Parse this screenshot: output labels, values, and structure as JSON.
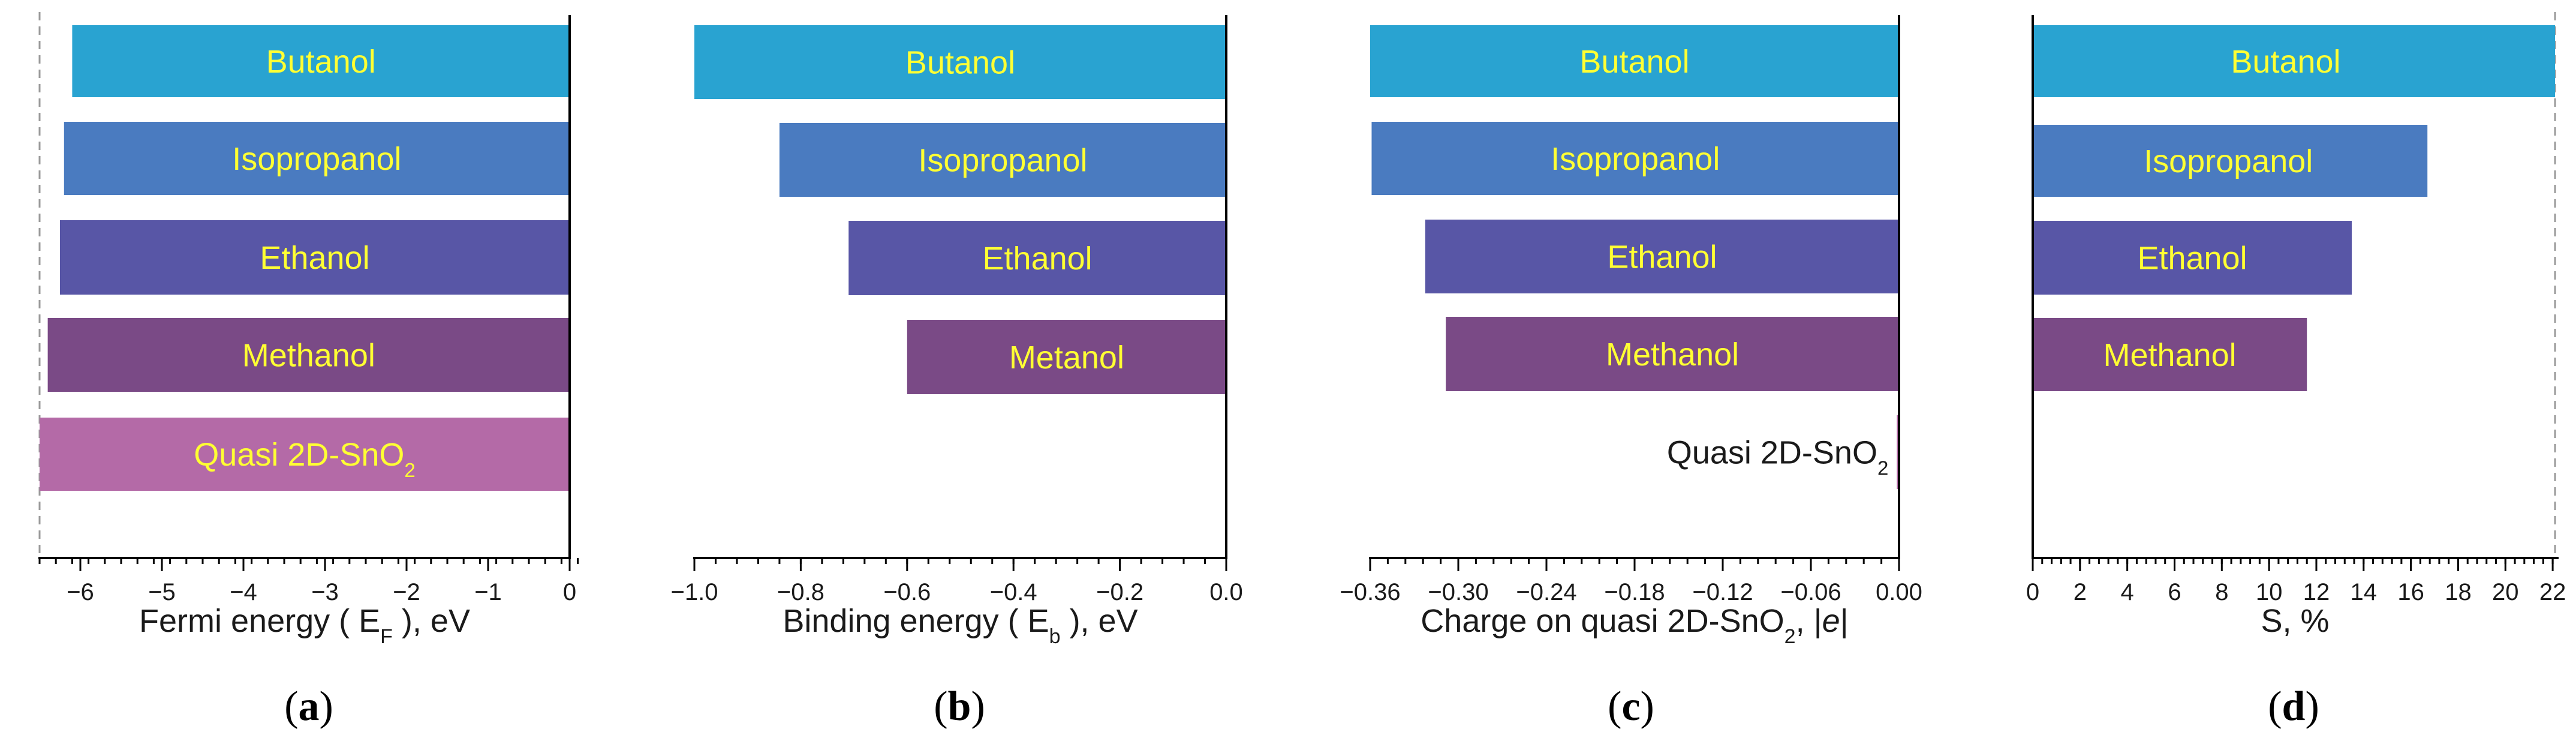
{
  "figure": {
    "panels": [
      "a",
      "b",
      "c",
      "d"
    ]
  },
  "chart_data": [
    {
      "type": "bar",
      "orientation": "horizontal",
      "panel": "a",
      "categories": [
        "Butanol",
        "Isopropanol",
        "Ethanol",
        "Methanol",
        "Quasi 2D-SnO2"
      ],
      "category_label_parts": [
        [
          "Butanol"
        ],
        [
          "Isopropanol"
        ],
        [
          "Ethanol"
        ],
        [
          "Methanol"
        ],
        [
          "Quasi 2D-SnO",
          "2",
          ""
        ]
      ],
      "values": [
        -6.1,
        -6.2,
        -6.25,
        -6.4,
        -6.5
      ],
      "colors": [
        "#29a3d1",
        "#4a7bc0",
        "#5856a6",
        "#7a4a86",
        "#b46aa7"
      ],
      "label_position": "inside-center",
      "xlim": [
        -6.5,
        0
      ],
      "xticks": [
        -6,
        -5,
        -4,
        -3,
        -2,
        -1,
        0
      ],
      "xticklabels": [
        "−6",
        "−5",
        "−4",
        "−3",
        "−2",
        "−1",
        "0"
      ],
      "xminor_step": 0.2,
      "xlabel_parts": [
        "Fermi energy ( E",
        "F",
        " ), eV"
      ],
      "ref_line": -6.5
    },
    {
      "type": "bar",
      "orientation": "horizontal",
      "panel": "b",
      "categories": [
        "Butanol",
        "Isopropanol",
        "Ethanol",
        "Metanol"
      ],
      "category_label_parts": [
        [
          "Butanol"
        ],
        [
          "Isopropanol"
        ],
        [
          "Ethanol"
        ],
        [
          "Metanol"
        ]
      ],
      "values": [
        -1.0,
        -0.84,
        -0.71,
        -0.6
      ],
      "colors": [
        "#29a3d1",
        "#4a7bc0",
        "#5856a6",
        "#7a4a86"
      ],
      "label_position": "inside-left",
      "xlim": [
        -1.0,
        0.0
      ],
      "xticks": [
        -1.0,
        -0.8,
        -0.6,
        -0.4,
        -0.2,
        0.0
      ],
      "xticklabels": [
        "−1.0",
        "−0.8",
        "−0.6",
        "−0.4",
        "−0.2",
        "0.0"
      ],
      "xminor_step": 0.04,
      "xlabel_parts": [
        "Binding energy ( E",
        "b",
        " ), eV"
      ]
    },
    {
      "type": "bar",
      "orientation": "horizontal",
      "panel": "c",
      "categories": [
        "Butanol",
        "Isopropanol",
        "Ethanol",
        "Methanol",
        "Quasi 2D-SnO2"
      ],
      "category_label_parts": [
        [
          "Butanol"
        ],
        [
          "Isopropanol"
        ],
        [
          "Ethanol"
        ],
        [
          "Methanol"
        ],
        [
          "Quasi 2D-SnO",
          "2",
          ""
        ]
      ],
      "values": [
        -0.36,
        -0.359,
        -0.3225,
        -0.3085,
        -0.0015
      ],
      "colors": [
        "#29a3d1",
        "#4a7bc0",
        "#5856a6",
        "#7a4a86",
        "#b46aa7"
      ],
      "label_position": "inside-left",
      "xlim": [
        -0.36,
        0.0
      ],
      "xticks": [
        -0.36,
        -0.3,
        -0.24,
        -0.18,
        -0.12,
        -0.06,
        0.0
      ],
      "xticklabels": [
        "−0.36",
        "−0.30",
        "−0.24",
        "−0.18",
        "−0.12",
        "−0.06",
        "0.00"
      ],
      "xminor_step": 0.012,
      "xlabel_parts": [
        "Charge on quasi 2D-SnO",
        "2",
        ",  |",
        "e",
        "|"
      ]
    },
    {
      "type": "bar",
      "orientation": "horizontal",
      "panel": "d",
      "categories": [
        "Butanol",
        "Isopropanol",
        "Ethanol",
        "Methanol"
      ],
      "category_label_parts": [
        [
          "Butanol"
        ],
        [
          "Isopropanol"
        ],
        [
          "Ethanol"
        ],
        [
          "Methanol"
        ]
      ],
      "values": [
        22.1,
        16.7,
        13.5,
        11.6
      ],
      "colors": [
        "#29a3d1",
        "#4a7bc0",
        "#5856a6",
        "#7a4a86"
      ],
      "label_position": "inside-left",
      "xlim": [
        0,
        22.2
      ],
      "xticks": [
        0,
        2,
        4,
        6,
        8,
        10,
        12,
        14,
        16,
        18,
        20,
        22
      ],
      "xticklabels": [
        "0",
        "2",
        "4",
        "6",
        "8",
        "10",
        "12",
        "14",
        "16",
        "18",
        "20",
        "22"
      ],
      "xminor_step": 0.4,
      "xlabel_parts": [
        "S, %"
      ],
      "ref_line": 22.1
    }
  ]
}
